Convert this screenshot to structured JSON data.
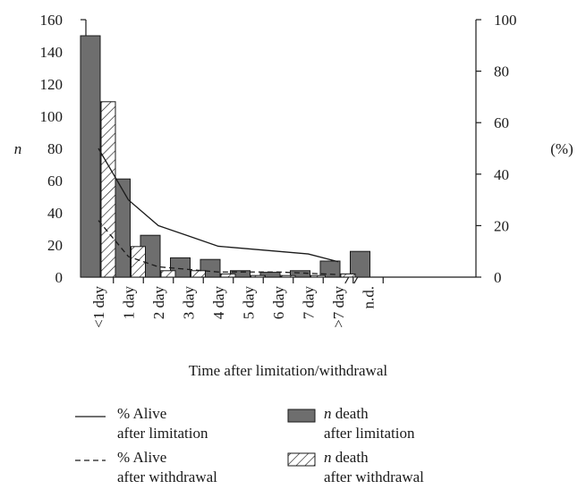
{
  "chart_data": {
    "type": "bar",
    "title": "",
    "xlabel": "Time after limitation/withdrawal",
    "ylabel_left": "n",
    "ylabel_right": "(%)",
    "ylim_left": [
      0,
      160
    ],
    "yticks_left": [
      0,
      20,
      40,
      60,
      80,
      100,
      120,
      140,
      160
    ],
    "ylim_right": [
      0,
      100
    ],
    "yticks_right": [
      0,
      20,
      40,
      60,
      80,
      100
    ],
    "categories": [
      "<1 day",
      "1 day",
      "2 day",
      "3 day",
      "4 day",
      "5 day",
      "6 day",
      "7 day",
      ">7 day",
      "n.d."
    ],
    "grid": false,
    "axis_break": "between >7 day and n.d.",
    "series": [
      {
        "name": "n death after limitation",
        "kind": "bar",
        "axis": "left",
        "fill": "solid",
        "values": [
          150,
          61,
          26,
          12,
          11,
          4,
          3,
          4,
          10,
          16
        ]
      },
      {
        "name": "n death after withdrawal",
        "kind": "bar",
        "axis": "left",
        "fill": "hatched",
        "values": [
          109,
          19,
          4,
          4,
          2,
          1,
          1,
          1,
          2,
          null
        ]
      },
      {
        "name": "% Alive after limitation",
        "kind": "line",
        "axis": "right",
        "style": "solid",
        "values": [
          50,
          30,
          20,
          16,
          12,
          11,
          10,
          9,
          6,
          null
        ]
      },
      {
        "name": "% Alive after withdrawal",
        "kind": "line",
        "axis": "right",
        "style": "dashed",
        "values": [
          22,
          8,
          4,
          3,
          2,
          2,
          2,
          1.5,
          1,
          null
        ]
      }
    ],
    "legend": {
      "placement": "bottom",
      "items": [
        {
          "symbol": "line-solid",
          "line1": "% Alive",
          "line2": "after limitation"
        },
        {
          "symbol": "bar-solid",
          "line1": "n death",
          "line2": "after limitation"
        },
        {
          "symbol": "line-dashed",
          "line1": "% Alive",
          "line2": "after withdrawal"
        },
        {
          "symbol": "bar-hatched",
          "line1": "n death",
          "line2": "after withdrawal"
        }
      ]
    },
    "colors": {
      "bar_solid": "#6e6e6e",
      "bar_border": "#1a1a1a",
      "line": "#1a1a1a",
      "background": "#ffffff"
    }
  }
}
